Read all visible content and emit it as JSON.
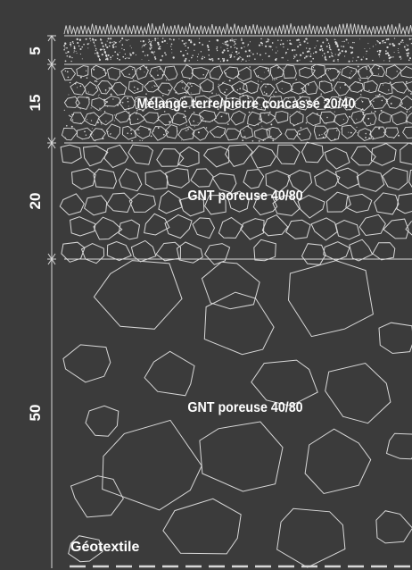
{
  "colors": {
    "background": "#3b3b3b",
    "line": "#d8d8d8",
    "text": "#ffffff"
  },
  "dimensions": [
    {
      "label": "5",
      "thickness": 5
    },
    {
      "label": "15",
      "thickness": 15
    },
    {
      "label": "20",
      "thickness": 20
    },
    {
      "label": "50",
      "thickness": 50
    }
  ],
  "layers": [
    {
      "texture": "grass",
      "label": ""
    },
    {
      "texture": "topsoil",
      "label": ""
    },
    {
      "texture": "earth-stone-mix",
      "label": "Mélange terre/pierre concassé 20/40"
    },
    {
      "texture": "porous-gravel-small",
      "label": "GNT poreuse 40/80"
    },
    {
      "texture": "porous-gravel-large",
      "label": "GNT poreuse  40/80"
    }
  ],
  "bottom_label": "Géotextile"
}
